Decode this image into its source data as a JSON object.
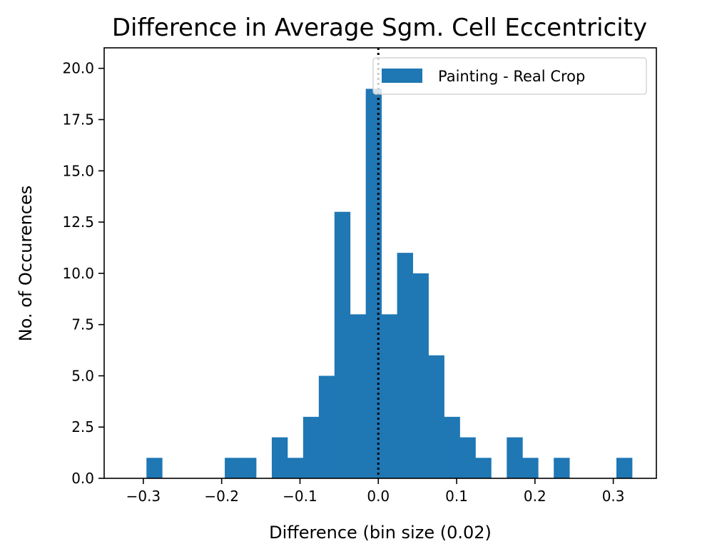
{
  "chart_data": {
    "type": "bar",
    "title": "Difference in Average Sgm. Cell Eccentricity",
    "xlabel": "Difference (bin size (0.02)",
    "ylabel": "No. of Occurences",
    "xlim": [
      -0.35,
      0.355
    ],
    "ylim": [
      0,
      21
    ],
    "xticks": [
      -0.3,
      -0.2,
      -0.1,
      0.0,
      0.1,
      0.2,
      0.3
    ],
    "xtick_labels": [
      "−0.3",
      "−0.2",
      "−0.1",
      "0.0",
      "0.1",
      "0.2",
      "0.3"
    ],
    "yticks": [
      0,
      2.5,
      5,
      7.5,
      10,
      12.5,
      15,
      17.5,
      20
    ],
    "ytick_labels": [
      "0.0",
      "2.5",
      "5.0",
      "7.5",
      "10.0",
      "12.5",
      "15.0",
      "17.5",
      "20.0"
    ],
    "bin_width": 0.02,
    "bins": [
      {
        "x0": -0.296,
        "count": 1
      },
      {
        "x0": -0.196,
        "count": 1
      },
      {
        "x0": -0.176,
        "count": 1
      },
      {
        "x0": -0.136,
        "count": 2
      },
      {
        "x0": -0.116,
        "count": 1
      },
      {
        "x0": -0.096,
        "count": 3
      },
      {
        "x0": -0.076,
        "count": 5
      },
      {
        "x0": -0.056,
        "count": 13
      },
      {
        "x0": -0.036,
        "count": 8
      },
      {
        "x0": -0.016,
        "count": 19
      },
      {
        "x0": 0.004,
        "count": 8
      },
      {
        "x0": 0.024,
        "count": 11
      },
      {
        "x0": 0.044,
        "count": 10
      },
      {
        "x0": 0.064,
        "count": 6
      },
      {
        "x0": 0.084,
        "count": 3
      },
      {
        "x0": 0.104,
        "count": 2
      },
      {
        "x0": 0.124,
        "count": 1
      },
      {
        "x0": 0.164,
        "count": 2
      },
      {
        "x0": 0.184,
        "count": 1
      },
      {
        "x0": 0.224,
        "count": 1
      },
      {
        "x0": 0.304,
        "count": 1
      }
    ],
    "vline": {
      "x": 0.0,
      "style": "dotted",
      "color": "#000000"
    },
    "bar_color": "#1f77b4",
    "legend": {
      "label": "Painting - Real Crop",
      "placement": "upper right"
    }
  }
}
